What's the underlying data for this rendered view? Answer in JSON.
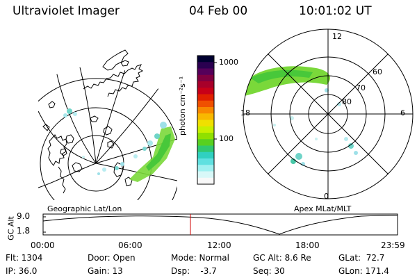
{
  "header": {
    "instrument": "Ultraviolet Imager",
    "date": "04 Feb 00",
    "time": "10:01:02 UT"
  },
  "colorbar": {
    "unit_label": "photon cm⁻²s⁻¹",
    "tick_labels": [
      "1000",
      "100"
    ],
    "colors": [
      "#000030",
      "#2a0050",
      "#55005a",
      "#800040",
      "#a8002a",
      "#c80018",
      "#e02000",
      "#f05000",
      "#f88800",
      "#f8b800",
      "#f0e000",
      "#c8f000",
      "#90e000",
      "#58d020",
      "#30c870",
      "#30d0c0",
      "#60e0e0",
      "#a0f0f0",
      "#d8f8f8",
      "#f8f8f8"
    ]
  },
  "geo_panel": {
    "label": "Geographic Lat/Lon"
  },
  "apex_panel": {
    "label": "Apex MLat/MLT",
    "mlt_labels": {
      "top": "12",
      "left": "18",
      "right": "6",
      "bottom": "0"
    },
    "lat_labels": [
      "60",
      "70",
      "80"
    ]
  },
  "altitude_plot": {
    "ylabel": "GC Alt",
    "ytick_labels": [
      "9.0",
      "1.8"
    ],
    "time_labels": [
      "00:00",
      "06:00",
      "12:00",
      "18:00",
      "23:59"
    ],
    "current_time_marker": "10:01:02"
  },
  "info": {
    "flt": "Flt: 1304",
    "ip": "IP: 36.0",
    "door": "Door: Open",
    "gain": "Gain: 13",
    "mode": "Mode: Normal",
    "dsp": "Dsp:    -3.7",
    "gc_alt": "GC Alt: 8.6 Re",
    "seq": "Seq: 30",
    "glat": "GLat:  72.7",
    "glon": "GLon: 171.4"
  }
}
